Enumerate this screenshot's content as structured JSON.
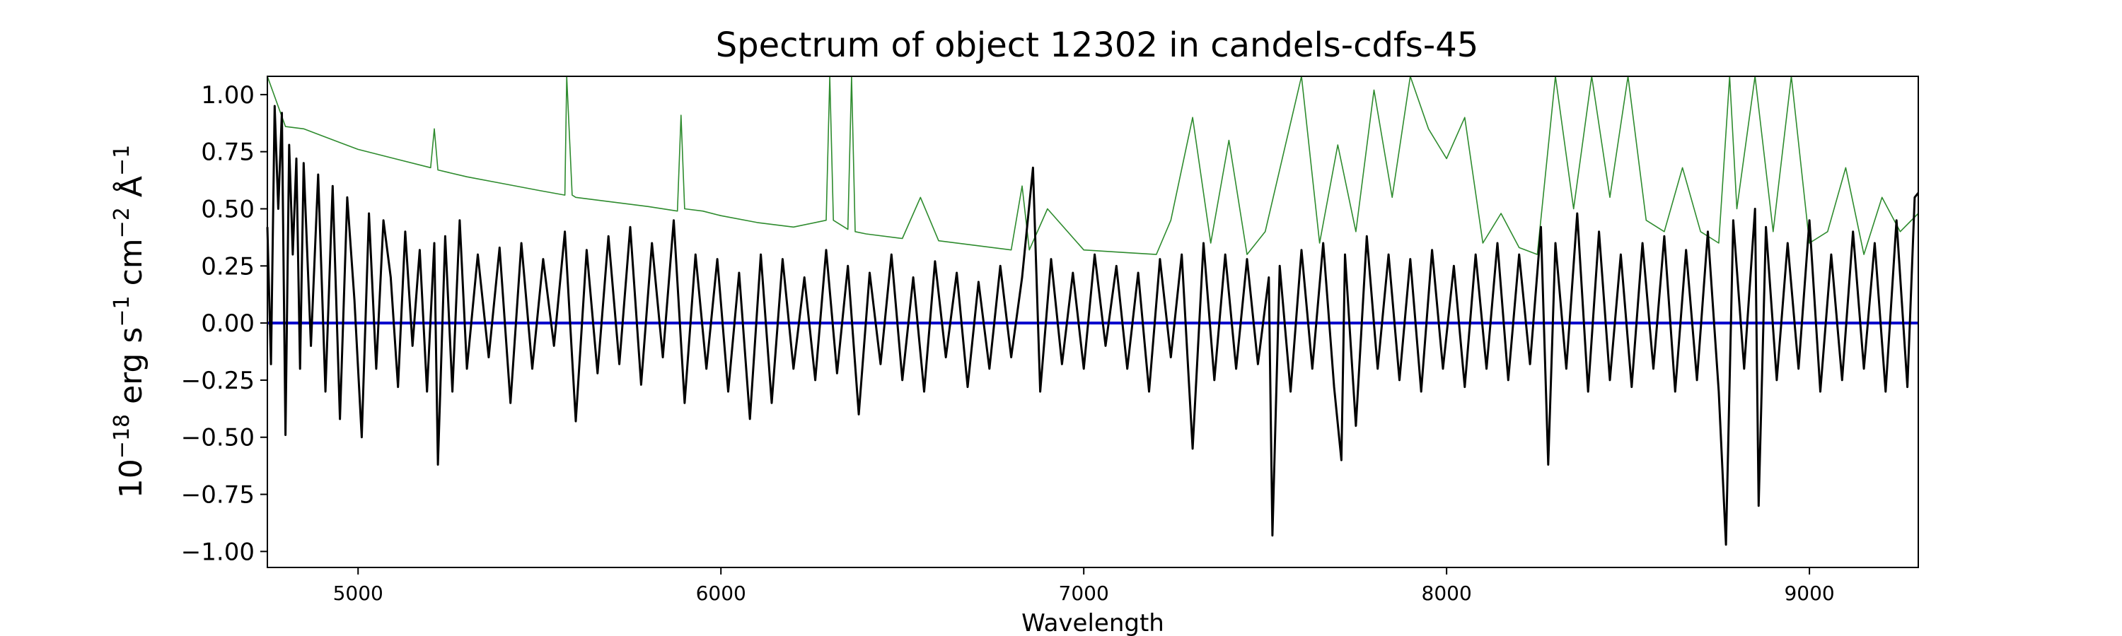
{
  "chart_data": {
    "type": "line",
    "title": "Spectrum of object 12302 in candels-cdfs-45",
    "xlabel": "Wavelength",
    "ylabel_base": "10",
    "ylabel_exp": "−18",
    "ylabel_unit_a": " erg s",
    "ylabel_unit_b": " cm",
    "ylabel_unit_c": " Å",
    "ylabel_exp_a": "−1",
    "ylabel_exp_b": "−2",
    "ylabel_exp_c": "−1",
    "xlim": [
      4750,
      9300
    ],
    "ylim": [
      -1.07,
      1.08
    ],
    "xticks": [
      5000,
      6000,
      7000,
      8000,
      9000
    ],
    "xtick_labels": [
      "5000",
      "6000",
      "7000",
      "8000",
      "9000"
    ],
    "yticks": [
      1.0,
      0.75,
      0.5,
      0.25,
      0.0,
      -0.25,
      -0.5,
      -0.75,
      -1.0
    ],
    "ytick_labels": [
      "1.00",
      "0.75",
      "0.50",
      "0.25",
      "0.00",
      "−0.25",
      "−0.50",
      "−0.75",
      "−1.00"
    ],
    "grid": false,
    "series": [
      {
        "role": "model",
        "color": "#2e8b2e",
        "x": [
          4750,
          4800,
          4850,
          4900,
          4950,
          5000,
          5100,
          5200,
          5210,
          5220,
          5300,
          5400,
          5500,
          5570,
          5575,
          5590,
          5600,
          5700,
          5800,
          5880,
          5890,
          5900,
          5950,
          6000,
          6100,
          6200,
          6290,
          6300,
          6310,
          6350,
          6360,
          6370,
          6400,
          6500,
          6550,
          6600,
          6700,
          6800,
          6830,
          6850,
          6900,
          7000,
          7100,
          7200,
          7240,
          7300,
          7350,
          7400,
          7450,
          7500,
          7600,
          7650,
          7700,
          7750,
          7800,
          7850,
          7900,
          7950,
          8000,
          8050,
          8100,
          8150,
          8200,
          8250,
          8300,
          8350,
          8400,
          8450,
          8500,
          8550,
          8600,
          8650,
          8700,
          8750,
          8780,
          8800,
          8850,
          8900,
          8950,
          9000,
          9050,
          9100,
          9150,
          9200,
          9250,
          9300
        ],
        "y": [
          1.08,
          0.86,
          0.85,
          0.82,
          0.79,
          0.76,
          0.72,
          0.68,
          0.85,
          0.67,
          0.64,
          0.61,
          0.58,
          0.56,
          1.08,
          0.56,
          0.55,
          0.53,
          0.51,
          0.49,
          0.91,
          0.5,
          0.49,
          0.47,
          0.44,
          0.42,
          0.45,
          1.08,
          0.45,
          0.41,
          1.08,
          0.4,
          0.39,
          0.37,
          0.55,
          0.36,
          0.34,
          0.32,
          0.6,
          0.32,
          0.5,
          0.32,
          0.31,
          0.3,
          0.45,
          0.9,
          0.35,
          0.8,
          0.3,
          0.4,
          1.08,
          0.35,
          0.78,
          0.4,
          1.02,
          0.55,
          1.08,
          0.85,
          0.72,
          0.9,
          0.35,
          0.48,
          0.33,
          0.3,
          1.08,
          0.5,
          1.08,
          0.55,
          1.08,
          0.45,
          0.4,
          0.68,
          0.4,
          0.35,
          1.08,
          0.5,
          1.08,
          0.4,
          1.08,
          0.35,
          0.4,
          0.68,
          0.3,
          0.55,
          0.4,
          0.48
        ]
      },
      {
        "role": "zero-line",
        "color": "#0000cc",
        "x": [
          4750,
          9300
        ],
        "y": [
          0.0,
          0.0
        ]
      },
      {
        "role": "spectrum",
        "color": "#000000",
        "x": [
          4750,
          4760,
          4770,
          4780,
          4790,
          4800,
          4810,
          4820,
          4830,
          4840,
          4850,
          4870,
          4890,
          4910,
          4930,
          4950,
          4970,
          4990,
          5010,
          5030,
          5050,
          5070,
          5090,
          5110,
          5130,
          5150,
          5170,
          5190,
          5210,
          5220,
          5240,
          5260,
          5280,
          5300,
          5330,
          5360,
          5390,
          5420,
          5450,
          5480,
          5510,
          5540,
          5570,
          5600,
          5630,
          5660,
          5690,
          5720,
          5750,
          5780,
          5810,
          5840,
          5870,
          5900,
          5930,
          5960,
          5990,
          6020,
          6050,
          6080,
          6110,
          6140,
          6170,
          6200,
          6230,
          6260,
          6290,
          6320,
          6350,
          6380,
          6410,
          6440,
          6470,
          6500,
          6530,
          6560,
          6590,
          6620,
          6650,
          6680,
          6710,
          6740,
          6770,
          6800,
          6830,
          6860,
          6880,
          6910,
          6940,
          6970,
          7000,
          7030,
          7060,
          7090,
          7120,
          7150,
          7180,
          7210,
          7240,
          7270,
          7300,
          7330,
          7360,
          7390,
          7420,
          7450,
          7480,
          7510,
          7520,
          7540,
          7570,
          7600,
          7630,
          7660,
          7690,
          7710,
          7720,
          7750,
          7780,
          7810,
          7840,
          7870,
          7900,
          7930,
          7960,
          7990,
          8020,
          8050,
          8080,
          8110,
          8140,
          8170,
          8200,
          8230,
          8260,
          8280,
          8300,
          8330,
          8360,
          8390,
          8420,
          8450,
          8480,
          8510,
          8540,
          8570,
          8600,
          8630,
          8660,
          8690,
          8720,
          8750,
          8770,
          8790,
          8820,
          8850,
          8860,
          8880,
          8910,
          8940,
          8970,
          9000,
          9030,
          9060,
          9090,
          9120,
          9150,
          9180,
          9210,
          9240,
          9270,
          9290,
          9300
        ],
        "y": [
          0.42,
          -0.18,
          0.95,
          0.5,
          0.92,
          -0.49,
          0.78,
          0.3,
          0.72,
          -0.2,
          0.7,
          -0.1,
          0.65,
          -0.3,
          0.6,
          -0.42,
          0.55,
          0.1,
          -0.5,
          0.48,
          -0.2,
          0.45,
          0.2,
          -0.28,
          0.4,
          -0.1,
          0.32,
          -0.3,
          0.35,
          -0.62,
          0.38,
          -0.3,
          0.45,
          -0.2,
          0.3,
          -0.15,
          0.33,
          -0.35,
          0.35,
          -0.2,
          0.28,
          -0.1,
          0.4,
          -0.43,
          0.32,
          -0.22,
          0.38,
          -0.18,
          0.42,
          -0.27,
          0.35,
          -0.15,
          0.45,
          -0.35,
          0.3,
          -0.2,
          0.28,
          -0.3,
          0.22,
          -0.42,
          0.3,
          -0.35,
          0.28,
          -0.2,
          0.2,
          -0.25,
          0.32,
          -0.22,
          0.25,
          -0.4,
          0.22,
          -0.18,
          0.3,
          -0.25,
          0.2,
          -0.3,
          0.27,
          -0.15,
          0.22,
          -0.28,
          0.18,
          -0.2,
          0.25,
          -0.15,
          0.2,
          0.68,
          -0.3,
          0.28,
          -0.18,
          0.22,
          -0.2,
          0.3,
          -0.1,
          0.25,
          -0.2,
          0.22,
          -0.3,
          0.28,
          -0.15,
          0.3,
          -0.55,
          0.35,
          -0.25,
          0.3,
          -0.2,
          0.28,
          -0.18,
          0.2,
          -0.93,
          0.25,
          -0.3,
          0.32,
          -0.2,
          0.35,
          -0.28,
          -0.6,
          0.3,
          -0.45,
          0.38,
          -0.2,
          0.3,
          -0.25,
          0.28,
          -0.3,
          0.32,
          -0.2,
          0.25,
          -0.28,
          0.3,
          -0.2,
          0.35,
          -0.25,
          0.3,
          -0.18,
          0.42,
          -0.62,
          0.35,
          -0.2,
          0.48,
          -0.3,
          0.4,
          -0.25,
          0.3,
          -0.28,
          0.35,
          -0.2,
          0.38,
          -0.3,
          0.32,
          -0.25,
          0.4,
          -0.3,
          -0.97,
          0.45,
          -0.2,
          0.5,
          -0.8,
          0.42,
          -0.25,
          0.35,
          -0.2,
          0.45,
          -0.3,
          0.3,
          -0.25,
          0.4,
          -0.2,
          0.35,
          -0.3,
          0.45,
          -0.28,
          0.55,
          0.57
        ]
      }
    ]
  }
}
